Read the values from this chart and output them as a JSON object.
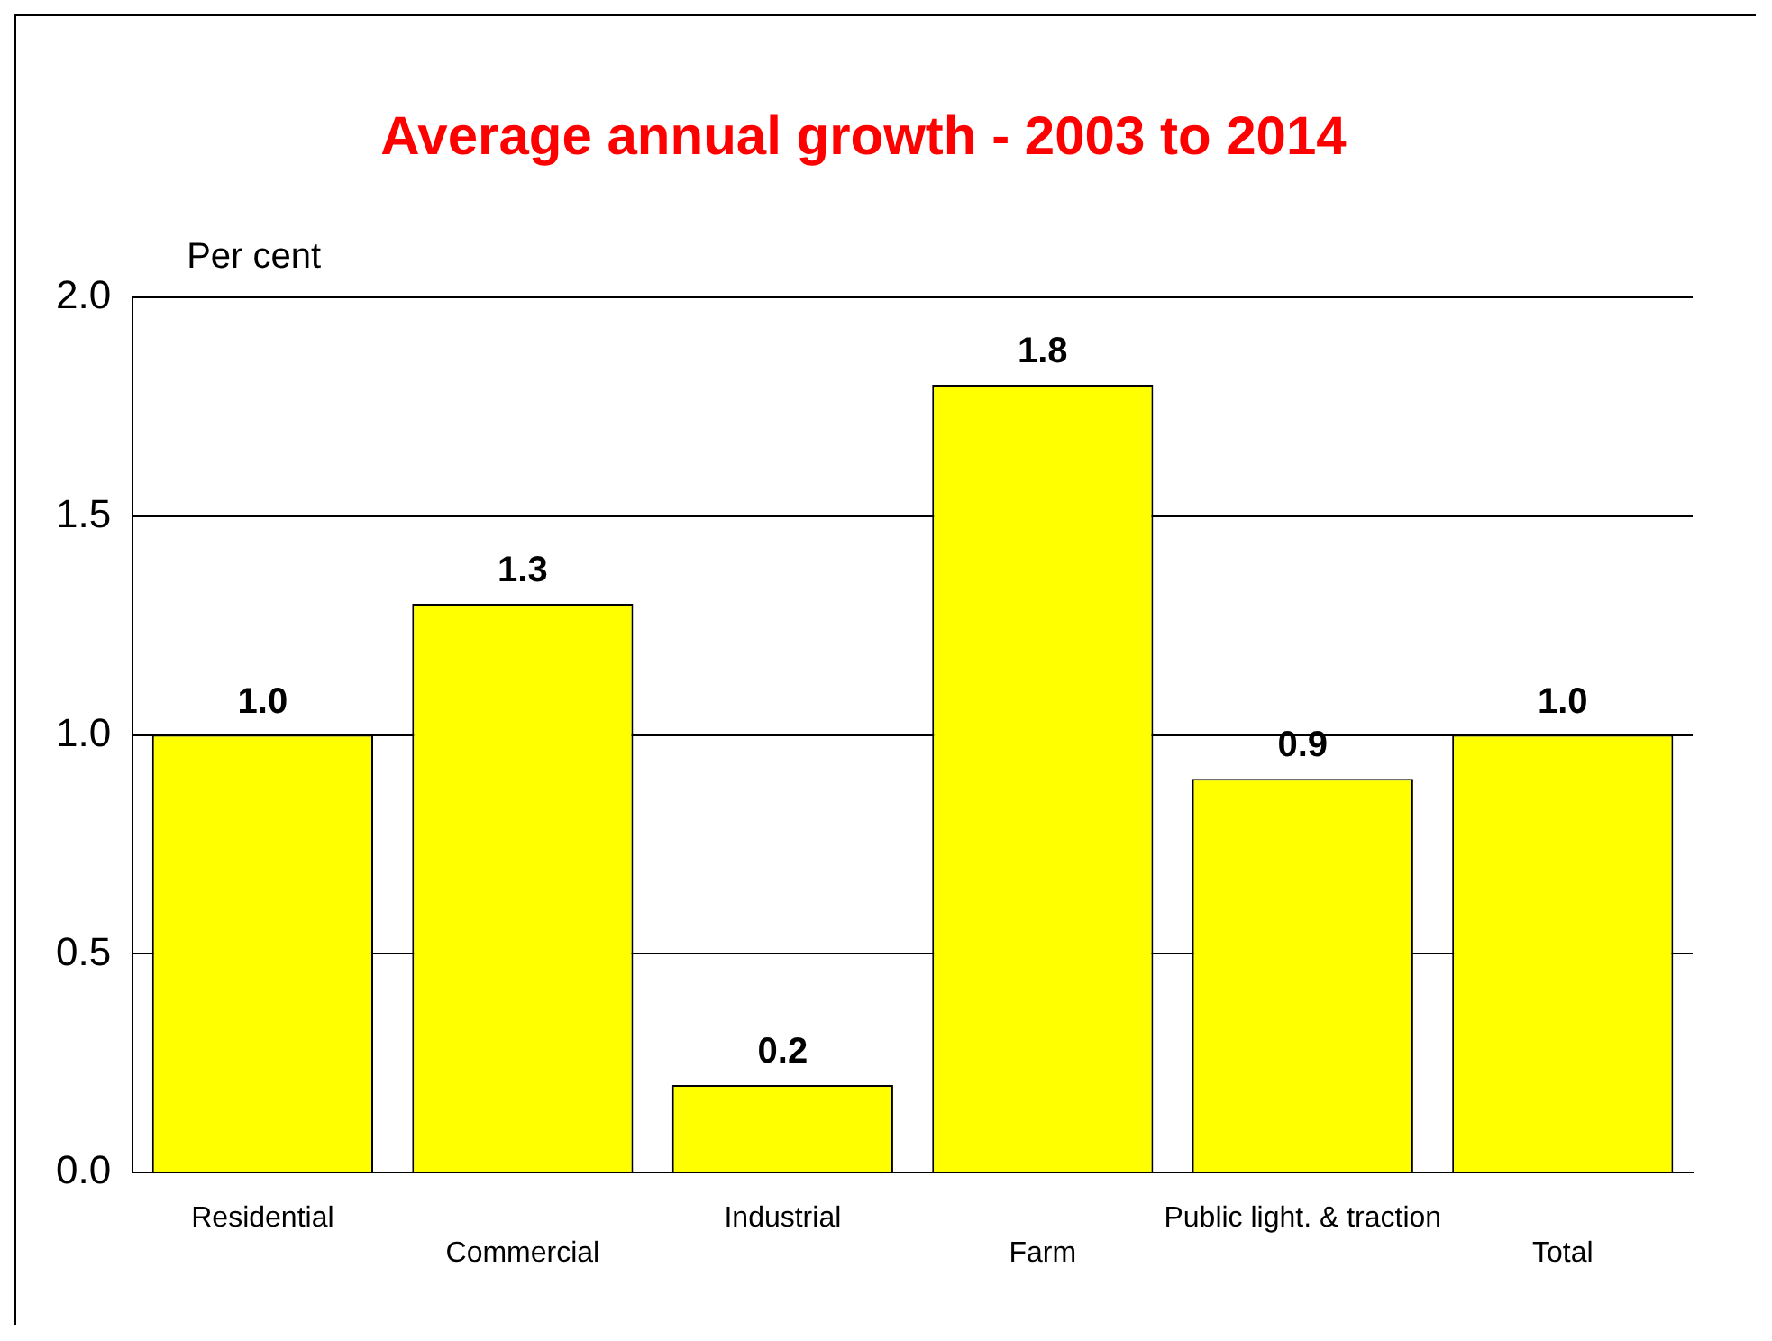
{
  "chart_data": {
    "type": "bar",
    "title": "Average annual growth - 2003 to 2014",
    "ylabel": "Per cent",
    "categories": [
      "Residential",
      "Commercial",
      "Industrial",
      "Farm",
      "Public light. & traction",
      "Total"
    ],
    "values": [
      1.0,
      1.3,
      0.2,
      1.8,
      0.9,
      1.0
    ],
    "value_labels": [
      "1.0",
      "1.3",
      "0.2",
      "1.8",
      "0.9",
      "1.0"
    ],
    "color": "#ffff00",
    "ylim": [
      0,
      2
    ],
    "yticks": [
      {
        "value": 0,
        "label": "0.0"
      },
      {
        "value": 0.5,
        "label": "0.5"
      },
      {
        "value": 1,
        "label": "1.0"
      },
      {
        "value": 1.5,
        "label": "1.5"
      },
      {
        "value": 2,
        "label": "2.0"
      }
    ],
    "grid": "y",
    "legend": false
  }
}
